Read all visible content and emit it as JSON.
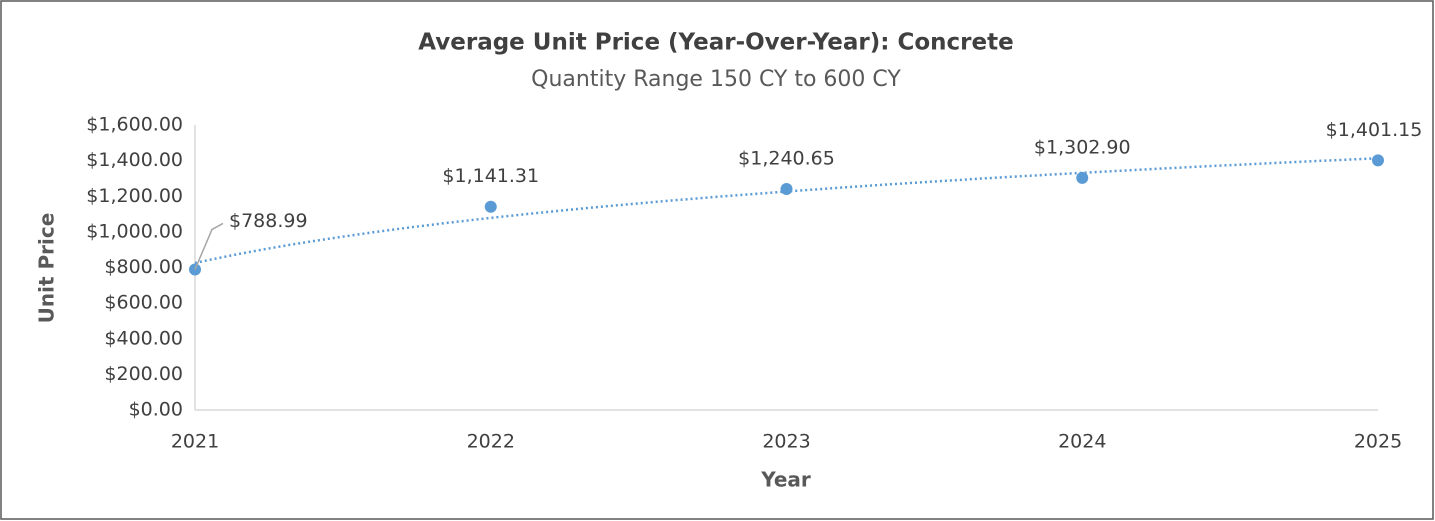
{
  "chart_data": {
    "type": "scatter",
    "title": "Average Unit Price (Year-Over-Year): Concrete",
    "subtitle": "Quantity Range 150 CY to 600 CY",
    "x_label": "Year",
    "y_label": "Unit Price",
    "x": [
      2021,
      2022,
      2023,
      2024,
      2025
    ],
    "values": [
      788.99,
      1141.31,
      1240.65,
      1302.9,
      1401.15
    ],
    "value_labels": [
      "$788.99",
      "$1,141.31",
      "$1,240.65",
      "$1,302.90",
      "$1,401.15"
    ],
    "color": "#5b9bd5",
    "trendline": "logarithmic",
    "xlim": [
      2021,
      2025
    ],
    "xticks": [
      2021,
      2022,
      2023,
      2024,
      2025
    ],
    "ylim": [
      0,
      1600
    ],
    "yticks": [
      {
        "value": 0,
        "label": "$0.00"
      },
      {
        "value": 200,
        "label": "$200.00"
      },
      {
        "value": 400,
        "label": "$400.00"
      },
      {
        "value": 600,
        "label": "$600.00"
      },
      {
        "value": 800,
        "label": "$800.00"
      },
      {
        "value": 1000,
        "label": "$1,000.00"
      },
      {
        "value": 1200,
        "label": "$1,200.00"
      },
      {
        "value": 1400,
        "label": "$1,400.00"
      },
      {
        "value": 1600,
        "label": "$1,600.00"
      }
    ],
    "grid": false
  }
}
